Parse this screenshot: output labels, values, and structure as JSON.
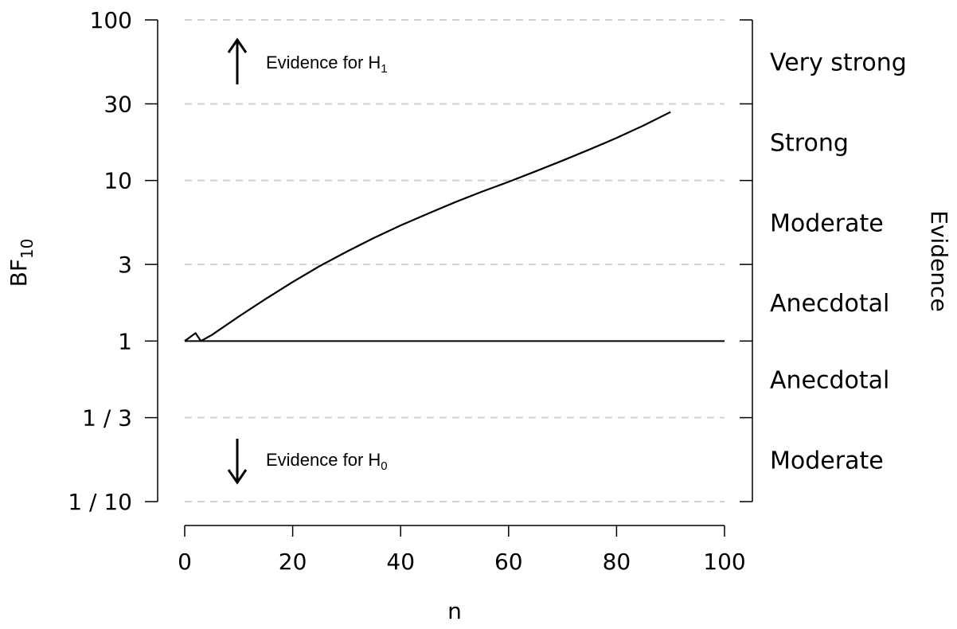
{
  "chart_data": {
    "type": "line",
    "xlabel": "n",
    "ylabel": {
      "base": "BF",
      "sub": "10"
    },
    "right_axis_title": "Evidence",
    "x_axis": {
      "range": [
        0,
        100
      ],
      "ticks": [
        0,
        20,
        40,
        60,
        80,
        100
      ],
      "tick_labels": [
        "0",
        "20",
        "40",
        "60",
        "80",
        "100"
      ]
    },
    "y_axis": {
      "scale": "log",
      "range": [
        0.1,
        100
      ],
      "ticks": [
        0.1,
        0.3333,
        1,
        3,
        10,
        30,
        100
      ],
      "tick_labels": [
        "1 / 10",
        "1 / 3",
        "1",
        "3",
        "10",
        "30",
        "100"
      ],
      "grid": "dashed"
    },
    "evidence_bands": [
      {
        "label": "Very strong",
        "from": 30,
        "to": 100
      },
      {
        "label": "Strong",
        "from": 10,
        "to": 30
      },
      {
        "label": "Moderate",
        "from": 3,
        "to": 10
      },
      {
        "label": "Anecdotal",
        "from": 1,
        "to": 3
      },
      {
        "label": "Anecdotal",
        "from": 0.3333,
        "to": 1
      },
      {
        "label": "Moderate",
        "from": 0.1,
        "to": 0.3333
      }
    ],
    "annotations": {
      "h1": {
        "text": "Evidence for H",
        "sub": "1",
        "direction": "up"
      },
      "h0": {
        "text": "Evidence for H",
        "sub": "0",
        "direction": "down"
      }
    },
    "reference_line": {
      "y": 1,
      "x_range": [
        0,
        100
      ]
    },
    "series": [
      {
        "x": [
          0,
          2,
          3,
          5,
          10,
          15,
          20,
          25,
          30,
          35,
          40,
          45,
          50,
          55,
          60,
          65,
          70,
          75,
          80,
          85,
          90
        ],
        "y": [
          1,
          1.12,
          1,
          1.09,
          1.42,
          1.83,
          2.33,
          2.93,
          3.6,
          4.38,
          5.25,
          6.2,
          7.3,
          8.5,
          9.8,
          11.4,
          13.3,
          15.6,
          18.4,
          22.0,
          26.7
        ]
      }
    ]
  }
}
